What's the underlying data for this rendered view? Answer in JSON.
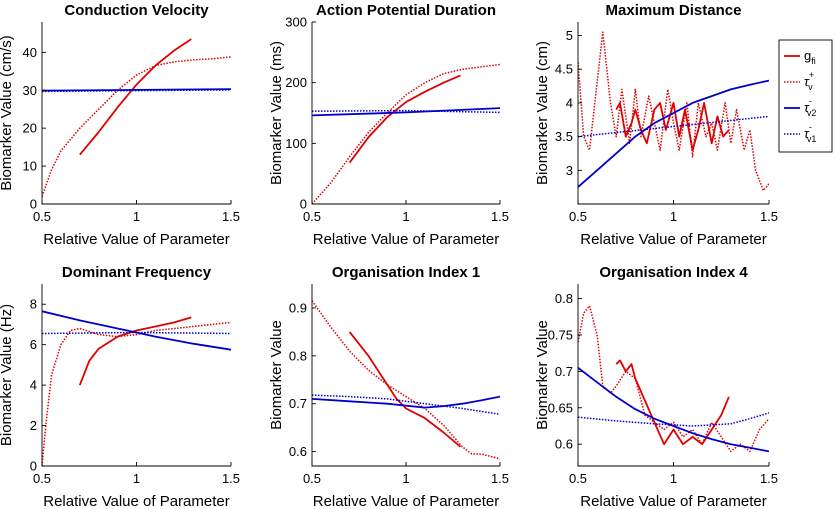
{
  "figure": "biomarker sensitivity panels",
  "colors": {
    "red": "#e00000",
    "blue": "#0000cc"
  },
  "legend": {
    "items": [
      {
        "base": "g",
        "sub": "fi",
        "sup": "",
        "color": "#e00000",
        "style": "solid"
      },
      {
        "base": "τ",
        "sub": "v",
        "sup": "+",
        "color": "#e00000",
        "style": "dotted"
      },
      {
        "base": "τ",
        "sub": "v2",
        "sup": "-",
        "color": "#0000cc",
        "style": "solid"
      },
      {
        "base": "τ",
        "sub": "v1",
        "sup": "-",
        "color": "#0000cc",
        "style": "dotted"
      }
    ]
  },
  "chart_data": [
    {
      "type": "line",
      "title": "Conduction Velocity",
      "xlabel": "Relative Value of Parameter",
      "ylabel": "Biomarker Value (cm/s)",
      "xlim": [
        0.5,
        1.5
      ],
      "ylim": [
        0,
        48
      ],
      "xticks": [
        0.5,
        1,
        1.5
      ],
      "xtick_labels": [
        "0.5",
        "1",
        "1.5"
      ],
      "yticks": [
        0,
        10,
        20,
        30,
        40
      ],
      "ytick_labels": [
        "0",
        "10",
        "20",
        "30",
        "40"
      ],
      "series": [
        {
          "name": "g_fi",
          "color": "#e00000",
          "style": "solid",
          "x": [
            0.7,
            0.8,
            0.9,
            1.0,
            1.1,
            1.2,
            1.29
          ],
          "y": [
            13,
            19,
            25.5,
            31.5,
            36.5,
            40.5,
            43.5
          ]
        },
        {
          "name": "tau_v_plus",
          "color": "#e00000",
          "style": "dotted",
          "x": [
            0.5,
            0.55,
            0.6,
            0.7,
            0.8,
            0.9,
            1.0,
            1.1,
            1.2,
            1.3,
            1.4,
            1.5
          ],
          "y": [
            2,
            9,
            14,
            20,
            25,
            30,
            34,
            36.5,
            37.5,
            38,
            38.3,
            38.8
          ]
        },
        {
          "name": "tau_v2_minus",
          "color": "#0000cc",
          "style": "solid",
          "x": [
            0.5,
            1.0,
            1.5
          ],
          "y": [
            29.9,
            30.1,
            30.3
          ]
        },
        {
          "name": "tau_v1_minus",
          "color": "#0000cc",
          "style": "dotted",
          "x": [
            0.5,
            1.0,
            1.5
          ],
          "y": [
            29.7,
            29.9,
            30.1
          ]
        }
      ]
    },
    {
      "type": "line",
      "title": "Action Potential Duration",
      "xlabel": "Relative Value of Parameter",
      "ylabel": "Biomarker Value (ms)",
      "xlim": [
        0.5,
        1.5
      ],
      "ylim": [
        0,
        300
      ],
      "xticks": [
        0.5,
        1,
        1.5
      ],
      "xtick_labels": [
        "0.5",
        "1",
        "1.5"
      ],
      "yticks": [
        0,
        100,
        200,
        300
      ],
      "ytick_labels": [
        "0",
        "100",
        "200",
        "300"
      ],
      "series": [
        {
          "name": "g_fi",
          "color": "#e00000",
          "style": "solid",
          "x": [
            0.7,
            0.8,
            0.9,
            1.0,
            1.1,
            1.2,
            1.29
          ],
          "y": [
            68,
            110,
            143,
            168,
            185,
            200,
            212
          ]
        },
        {
          "name": "tau_v_plus",
          "color": "#e00000",
          "style": "dotted",
          "x": [
            0.5,
            0.6,
            0.7,
            0.8,
            0.9,
            1.0,
            1.1,
            1.2,
            1.3,
            1.4,
            1.5
          ],
          "y": [
            0,
            35,
            78,
            118,
            150,
            180,
            200,
            215,
            222,
            226,
            230
          ]
        },
        {
          "name": "tau_v2_minus",
          "color": "#0000cc",
          "style": "solid",
          "x": [
            0.5,
            1.0,
            1.5
          ],
          "y": [
            146,
            151,
            158
          ]
        },
        {
          "name": "tau_v1_minus",
          "color": "#0000cc",
          "style": "dotted",
          "x": [
            0.5,
            1.0,
            1.5
          ],
          "y": [
            153,
            154,
            151
          ]
        }
      ]
    },
    {
      "type": "line",
      "title": "Maximum Distance",
      "xlabel": "Relative Value of Parameter",
      "ylabel": "Biomarker Value (cm)",
      "xlim": [
        0.5,
        1.5
      ],
      "ylim": [
        2.5,
        5.2
      ],
      "xticks": [
        0.5,
        1,
        1.5
      ],
      "xtick_labels": [
        "0.5",
        "1",
        "1.5"
      ],
      "yticks": [
        3,
        3.5,
        4,
        4.5,
        5
      ],
      "ytick_labels": [
        "3",
        "3.5",
        "4",
        "4.5",
        "5"
      ],
      "series": [
        {
          "name": "g_fi",
          "color": "#e00000",
          "style": "solid",
          "x": [
            0.7,
            0.72,
            0.75,
            0.78,
            0.8,
            0.83,
            0.86,
            0.9,
            0.93,
            0.96,
            1.0,
            1.03,
            1.06,
            1.1,
            1.13,
            1.16,
            1.2,
            1.23,
            1.26,
            1.29
          ],
          "y": [
            3.9,
            4.0,
            3.5,
            3.7,
            3.9,
            3.6,
            3.4,
            3.9,
            4.0,
            3.6,
            4.0,
            3.5,
            3.9,
            3.3,
            3.6,
            4.0,
            3.4,
            3.8,
            3.5,
            3.6
          ]
        },
        {
          "name": "tau_v_plus",
          "color": "#e00000",
          "style": "dotted",
          "x": [
            0.5,
            0.53,
            0.56,
            0.6,
            0.63,
            0.67,
            0.7,
            0.73,
            0.77,
            0.8,
            0.83,
            0.87,
            0.9,
            0.93,
            0.97,
            1.0,
            1.03,
            1.07,
            1.1,
            1.13,
            1.17,
            1.2,
            1.23,
            1.27,
            1.3,
            1.33,
            1.37,
            1.4,
            1.43,
            1.47,
            1.5
          ],
          "y": [
            4.6,
            3.5,
            3.3,
            4.3,
            5.05,
            4.0,
            3.5,
            4.2,
            3.4,
            4.2,
            3.5,
            4.1,
            3.7,
            3.3,
            4.2,
            3.7,
            3.3,
            4.0,
            3.2,
            4.0,
            3.5,
            3.7,
            3.3,
            4.0,
            3.4,
            3.9,
            3.3,
            3.6,
            3.0,
            2.7,
            2.8
          ]
        },
        {
          "name": "tau_v2_minus",
          "color": "#0000cc",
          "style": "solid",
          "x": [
            0.5,
            0.6,
            0.7,
            0.8,
            0.9,
            1.0,
            1.1,
            1.2,
            1.3,
            1.4,
            1.5
          ],
          "y": [
            2.75,
            3.0,
            3.25,
            3.5,
            3.7,
            3.85,
            4.0,
            4.1,
            4.2,
            4.27,
            4.33
          ]
        },
        {
          "name": "tau_v1_minus",
          "color": "#0000cc",
          "style": "dotted",
          "x": [
            0.5,
            1.0,
            1.5
          ],
          "y": [
            3.5,
            3.65,
            3.8
          ]
        }
      ]
    },
    {
      "type": "line",
      "title": "Dominant Frequency",
      "xlabel": "Relative Value of Parameter",
      "ylabel": "Biomarker Value (Hz)",
      "xlim": [
        0.5,
        1.5
      ],
      "ylim": [
        0,
        9
      ],
      "xticks": [
        0.5,
        1,
        1.5
      ],
      "xtick_labels": [
        "0.5",
        "1",
        "1.5"
      ],
      "yticks": [
        0,
        2,
        4,
        6,
        8
      ],
      "ytick_labels": [
        "0",
        "2",
        "4",
        "6",
        "8"
      ],
      "series": [
        {
          "name": "g_fi",
          "color": "#e00000",
          "style": "solid",
          "x": [
            0.7,
            0.75,
            0.8,
            0.9,
            1.0,
            1.1,
            1.2,
            1.29
          ],
          "y": [
            4.0,
            5.2,
            5.8,
            6.4,
            6.7,
            6.9,
            7.1,
            7.35
          ]
        },
        {
          "name": "tau_v_plus",
          "color": "#e00000",
          "style": "dotted",
          "x": [
            0.5,
            0.52,
            0.55,
            0.6,
            0.65,
            0.7,
            0.8,
            0.9,
            1.0,
            1.1,
            1.2,
            1.3,
            1.4,
            1.5
          ],
          "y": [
            0,
            2.0,
            4.5,
            6.0,
            6.7,
            6.8,
            6.5,
            6.4,
            6.5,
            6.7,
            6.8,
            6.9,
            7.0,
            7.1
          ]
        },
        {
          "name": "tau_v2_minus",
          "color": "#0000cc",
          "style": "solid",
          "x": [
            0.5,
            0.7,
            0.9,
            1.1,
            1.3,
            1.5
          ],
          "y": [
            7.65,
            7.2,
            6.8,
            6.4,
            6.05,
            5.75
          ]
        },
        {
          "name": "tau_v1_minus",
          "color": "#0000cc",
          "style": "dotted",
          "x": [
            0.5,
            1.0,
            1.5
          ],
          "y": [
            6.55,
            6.6,
            6.55
          ]
        }
      ]
    },
    {
      "type": "line",
      "title": "Organisation Index 1",
      "xlabel": "Relative Value of Parameter",
      "ylabel": "Biomarker Value",
      "xlim": [
        0.5,
        1.5
      ],
      "ylim": [
        0.57,
        0.95
      ],
      "xticks": [
        0.5,
        1,
        1.5
      ],
      "xtick_labels": [
        "0.5",
        "1",
        "1.5"
      ],
      "yticks": [
        0.6,
        0.7,
        0.8,
        0.9
      ],
      "ytick_labels": [
        "0.6",
        "0.7",
        "0.8",
        "0.9"
      ],
      "series": [
        {
          "name": "g_fi",
          "color": "#e00000",
          "style": "solid",
          "x": [
            0.7,
            0.8,
            0.9,
            0.95,
            1.0,
            1.1,
            1.2,
            1.29
          ],
          "y": [
            0.85,
            0.8,
            0.74,
            0.71,
            0.69,
            0.67,
            0.64,
            0.61
          ]
        },
        {
          "name": "tau_v_plus",
          "color": "#e00000",
          "style": "dotted",
          "x": [
            0.5,
            0.6,
            0.7,
            0.8,
            0.9,
            1.0,
            1.1,
            1.2,
            1.3,
            1.35,
            1.4,
            1.5
          ],
          "y": [
            0.915,
            0.86,
            0.81,
            0.77,
            0.74,
            0.715,
            0.69,
            0.655,
            0.61,
            0.595,
            0.595,
            0.585
          ]
        },
        {
          "name": "tau_v2_minus",
          "color": "#0000cc",
          "style": "solid",
          "x": [
            0.5,
            0.7,
            0.9,
            1.1,
            1.2,
            1.3,
            1.4,
            1.5
          ],
          "y": [
            0.71,
            0.705,
            0.7,
            0.692,
            0.695,
            0.7,
            0.707,
            0.715
          ]
        },
        {
          "name": "tau_v1_minus",
          "color": "#0000cc",
          "style": "dotted",
          "x": [
            0.5,
            0.7,
            0.9,
            1.1,
            1.3,
            1.5
          ],
          "y": [
            0.718,
            0.715,
            0.71,
            0.7,
            0.69,
            0.678
          ]
        }
      ]
    },
    {
      "type": "line",
      "title": "Organisation Index 4",
      "xlabel": "Relative Value of Parameter",
      "ylabel": "Biomarker Value",
      "xlim": [
        0.5,
        1.5
      ],
      "ylim": [
        0.57,
        0.82
      ],
      "xticks": [
        0.5,
        1,
        1.5
      ],
      "xtick_labels": [
        "0.5",
        "1",
        "1.5"
      ],
      "yticks": [
        0.6,
        0.65,
        0.7,
        0.75,
        0.8
      ],
      "ytick_labels": [
        "0.6",
        "0.65",
        "0.7",
        "0.75",
        "0.8"
      ],
      "series": [
        {
          "name": "g_fi",
          "color": "#e00000",
          "style": "solid",
          "x": [
            0.7,
            0.72,
            0.75,
            0.78,
            0.8,
            0.85,
            0.9,
            0.95,
            1.0,
            1.05,
            1.1,
            1.15,
            1.2,
            1.25,
            1.29
          ],
          "y": [
            0.71,
            0.715,
            0.7,
            0.71,
            0.69,
            0.66,
            0.63,
            0.6,
            0.62,
            0.6,
            0.61,
            0.6,
            0.62,
            0.64,
            0.665
          ]
        },
        {
          "name": "tau_v_plus",
          "color": "#e00000",
          "style": "dotted",
          "x": [
            0.5,
            0.53,
            0.56,
            0.6,
            0.63,
            0.67,
            0.7,
            0.75,
            0.8,
            0.85,
            0.9,
            0.95,
            1.0,
            1.05,
            1.1,
            1.15,
            1.2,
            1.25,
            1.3,
            1.35,
            1.4,
            1.45,
            1.5
          ],
          "y": [
            0.74,
            0.78,
            0.79,
            0.75,
            0.68,
            0.67,
            0.68,
            0.7,
            0.69,
            0.64,
            0.63,
            0.62,
            0.63,
            0.61,
            0.62,
            0.6,
            0.63,
            0.61,
            0.59,
            0.6,
            0.59,
            0.62,
            0.635
          ]
        },
        {
          "name": "tau_v2_minus",
          "color": "#0000cc",
          "style": "solid",
          "x": [
            0.5,
            0.6,
            0.7,
            0.8,
            0.9,
            1.0,
            1.1,
            1.2,
            1.3,
            1.4,
            1.5
          ],
          "y": [
            0.705,
            0.685,
            0.665,
            0.648,
            0.635,
            0.625,
            0.615,
            0.607,
            0.6,
            0.595,
            0.59
          ]
        },
        {
          "name": "tau_v1_minus",
          "color": "#0000cc",
          "style": "dotted",
          "x": [
            0.5,
            0.7,
            0.9,
            1.1,
            1.3,
            1.4,
            1.5
          ],
          "y": [
            0.637,
            0.632,
            0.628,
            0.625,
            0.628,
            0.635,
            0.643
          ]
        }
      ]
    }
  ]
}
